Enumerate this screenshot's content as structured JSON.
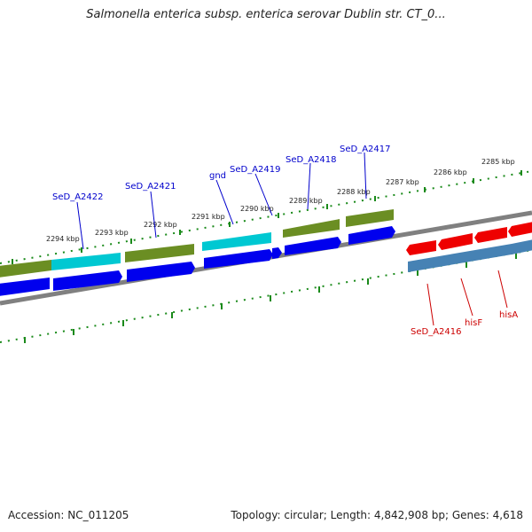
{
  "title": "Salmonella enterica subsp. enterica serovar Dublin str. CT_0...",
  "footer": {
    "accession": "Accession: NC_011205",
    "summary": "Topology: circular; Length: 4,842,908 bp; Genes: 4,618"
  },
  "colors": {
    "forward_gene": "#6b8e23",
    "forward_rna": "#00c8d2",
    "forward_cds": "#0000ee",
    "reverse_cds": "#ee0000",
    "reverse_gene": "#4682b4",
    "backbone": "#808080",
    "tick": "#1a8a1a",
    "label_blue": "#0000cc",
    "label_red": "#cc0000"
  },
  "scale_labels": [
    "2294 kbp",
    "2293 kbp",
    "2292 kbp",
    "2291 kbp",
    "2290 kbp",
    "2289 kbp",
    "2288 kbp",
    "2287 kbp",
    "2286 kbp",
    "2285 kbp"
  ],
  "forward_labels": [
    "SeD_A2422",
    "SeD_A2421",
    "gnd",
    "SeD_A2419",
    "SeD_A2418",
    "SeD_A2417"
  ],
  "reverse_labels": [
    "SeD_A2416",
    "hisF",
    "hisA"
  ]
}
